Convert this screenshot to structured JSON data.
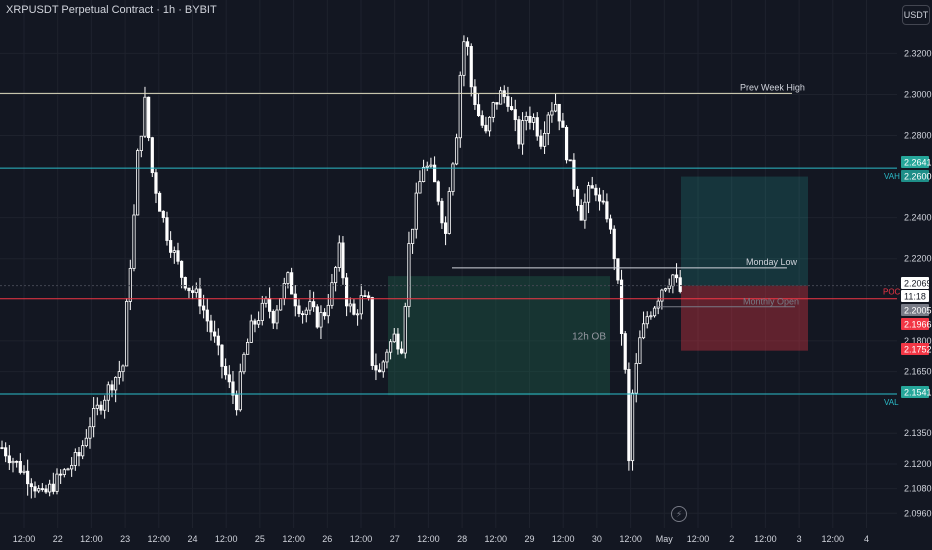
{
  "header": {
    "title": "XRPUSDT Perpetual Contract · 1h · BYBIT",
    "currency": "USDT"
  },
  "colors": {
    "background": "#131722",
    "up": "#ffffff",
    "down": "#ffffff",
    "grid": "#1e222d",
    "cyan": "#2bbcc9",
    "poc": "#f23645",
    "white_line": "#d1d4dc"
  },
  "chart_data": {
    "type": "candlestick",
    "ylim": [
      2.088,
      2.338
    ],
    "y_ticks": [
      "2.3200",
      "2.3000",
      "2.2800",
      "2.2400",
      "2.2200",
      "2.1800",
      "2.1650",
      "2.1350",
      "2.1200",
      "2.1080",
      "2.0960"
    ],
    "x_ticks": [
      "12:00",
      "22",
      "12:00",
      "23",
      "12:00",
      "24",
      "12:00",
      "25",
      "12:00",
      "26",
      "12:00",
      "27",
      "12:00",
      "28",
      "12:00",
      "29",
      "12:00",
      "30",
      "12:00",
      "May",
      "12:00",
      "2",
      "12:00",
      "3",
      "12:00",
      "4"
    ],
    "price_path": [
      [
        0,
        2.128
      ],
      [
        4,
        2.12
      ],
      [
        8,
        2.112
      ],
      [
        11,
        2.104
      ],
      [
        14,
        2.11
      ],
      [
        18,
        2.118
      ],
      [
        21,
        2.124
      ],
      [
        24,
        2.14
      ],
      [
        27,
        2.15
      ],
      [
        30,
        2.16
      ],
      [
        33,
        2.168
      ],
      [
        34,
        2.196
      ],
      [
        36,
        2.24
      ],
      [
        37,
        2.27
      ],
      [
        39,
        2.296
      ],
      [
        41,
        2.262
      ],
      [
        43,
        2.246
      ],
      [
        45,
        2.232
      ],
      [
        47,
        2.222
      ],
      [
        49,
        2.212
      ],
      [
        51,
        2.206
      ],
      [
        54,
        2.2
      ],
      [
        56,
        2.19
      ],
      [
        58,
        2.18
      ],
      [
        60,
        2.168
      ],
      [
        62,
        2.158
      ],
      [
        64,
        2.15
      ],
      [
        66,
        2.172
      ],
      [
        68,
        2.186
      ],
      [
        70,
        2.192
      ],
      [
        72,
        2.198
      ],
      [
        74,
        2.192
      ],
      [
        76,
        2.202
      ],
      [
        78,
        2.21
      ],
      [
        80,
        2.2
      ],
      [
        82,
        2.194
      ],
      [
        84,
        2.196
      ],
      [
        86,
        2.19
      ],
      [
        88,
        2.194
      ],
      [
        90,
        2.206
      ],
      [
        92,
        2.224
      ],
      [
        94,
        2.2
      ],
      [
        96,
        2.192
      ],
      [
        98,
        2.2
      ],
      [
        100,
        2.198
      ],
      [
        101,
        2.17
      ],
      [
        103,
        2.164
      ],
      [
        105,
        2.176
      ],
      [
        107,
        2.182
      ],
      [
        109,
        2.178
      ],
      [
        110,
        2.2
      ],
      [
        111,
        2.226
      ],
      [
        113,
        2.248
      ],
      [
        115,
        2.266
      ],
      [
        117,
        2.262
      ],
      [
        119,
        2.25
      ],
      [
        121,
        2.232
      ],
      [
        122,
        2.256
      ],
      [
        124,
        2.282
      ],
      [
        125,
        2.31
      ],
      [
        126,
        2.326
      ],
      [
        127,
        2.322
      ],
      [
        128,
        2.304
      ],
      [
        130,
        2.29
      ],
      [
        132,
        2.28
      ],
      [
        134,
        2.294
      ],
      [
        136,
        2.3
      ],
      [
        138,
        2.298
      ],
      [
        140,
        2.284
      ],
      [
        141,
        2.278
      ],
      [
        143,
        2.29
      ],
      [
        145,
        2.288
      ],
      [
        147,
        2.278
      ],
      [
        149,
        2.292
      ],
      [
        151,
        2.296
      ],
      [
        152,
        2.29
      ],
      [
        154,
        2.272
      ],
      [
        156,
        2.256
      ],
      [
        158,
        2.242
      ],
      [
        160,
        2.252
      ],
      [
        162,
        2.254
      ],
      [
        163,
        2.246
      ],
      [
        165,
        2.242
      ],
      [
        167,
        2.222
      ],
      [
        168,
        2.206
      ],
      [
        170,
        2.164
      ],
      [
        171,
        2.12
      ],
      [
        172,
        2.154
      ],
      [
        174,
        2.18
      ],
      [
        176,
        2.192
      ],
      [
        178,
        2.198
      ],
      [
        180,
        2.206
      ],
      [
        182,
        2.21
      ],
      [
        183,
        2.212
      ],
      [
        185,
        2.204
      ]
    ],
    "levels": [
      {
        "name": "Prev Week High",
        "price": 2.3005,
        "label_text": "Prev Week High",
        "color": "white"
      },
      {
        "name": "VAH",
        "price": 2.2641,
        "label_text": "VAH",
        "axis_label": "2.2641",
        "color": "cyan"
      },
      {
        "name": "VAL",
        "price": 2.1541,
        "label_text": "VAL",
        "axis_label": "2.1541",
        "color": "cyan"
      },
      {
        "name": "POC",
        "price": 2.2005,
        "label_text": "POC",
        "axis_label": "2.2005",
        "color": "red"
      },
      {
        "name": "Monday Low",
        "price": 2.2155,
        "label_text": "Monday Low",
        "color": "white"
      },
      {
        "name": "Monthly Open",
        "price": 2.1966,
        "label_text": "Monthly Open",
        "color": "gray"
      }
    ],
    "zones": [
      {
        "name": "12h OB",
        "top": 2.2115,
        "bottom": 2.1535,
        "label_text": "12h OB"
      }
    ],
    "position": {
      "entry": 2.2069,
      "target": 2.26,
      "stop": 2.1752
    },
    "axis_labels": [
      {
        "text": "2.2641",
        "bg": "#26a69a",
        "fg": "#ffffff"
      },
      {
        "text": "2.2600",
        "bg": "#1e8e88",
        "fg": "#ffffff"
      },
      {
        "text": "2.2069",
        "bg": "#ffffff",
        "fg": "#131722"
      },
      {
        "text": "11:18",
        "bg": "#ffffff",
        "fg": "#131722"
      },
      {
        "text": "2.2005",
        "bg": "#787b86",
        "fg": "#ffffff"
      },
      {
        "text": "2.1966",
        "bg": "#f23645",
        "fg": "#ffffff"
      },
      {
        "text": "2.1752",
        "bg": "#f23645",
        "fg": "#ffffff"
      },
      {
        "text": "2.1541",
        "bg": "#26a69a",
        "fg": "#ffffff"
      }
    ]
  }
}
